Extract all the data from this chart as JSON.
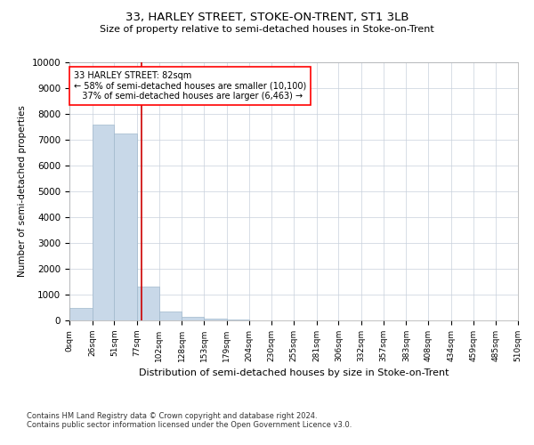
{
  "title": "33, HARLEY STREET, STOKE-ON-TRENT, ST1 3LB",
  "subtitle": "Size of property relative to semi-detached houses in Stoke-on-Trent",
  "xlabel": "Distribution of semi-detached houses by size in Stoke-on-Trent",
  "ylabel": "Number of semi-detached properties",
  "footnote1": "Contains HM Land Registry data © Crown copyright and database right 2024.",
  "footnote2": "Contains public sector information licensed under the Open Government Licence v3.0.",
  "bar_color": "#c8d8e8",
  "bar_edge_color": "#a0b8cc",
  "marker_color": "#cc0000",
  "marker_value": 82,
  "bin_edges": [
    0,
    26,
    51,
    77,
    102,
    128,
    153,
    179,
    204,
    230,
    255,
    281,
    306,
    332,
    357,
    383,
    408,
    434,
    459,
    485,
    510
  ],
  "bar_heights": [
    500,
    7600,
    7250,
    1300,
    350,
    150,
    80,
    40,
    0,
    0,
    0,
    0,
    0,
    0,
    0,
    0,
    0,
    0,
    0,
    0
  ],
  "annotation_line1": "33 HARLEY STREET: 82sqm",
  "annotation_line2": "← 58% of semi-detached houses are smaller (10,100)",
  "annotation_line3": "   37% of semi-detached houses are larger (6,463) →",
  "ylim": [
    0,
    10000
  ],
  "yticks": [
    0,
    1000,
    2000,
    3000,
    4000,
    5000,
    6000,
    7000,
    8000,
    9000,
    10000
  ],
  "background_color": "#ffffff",
  "grid_color": "#c8d0dc"
}
